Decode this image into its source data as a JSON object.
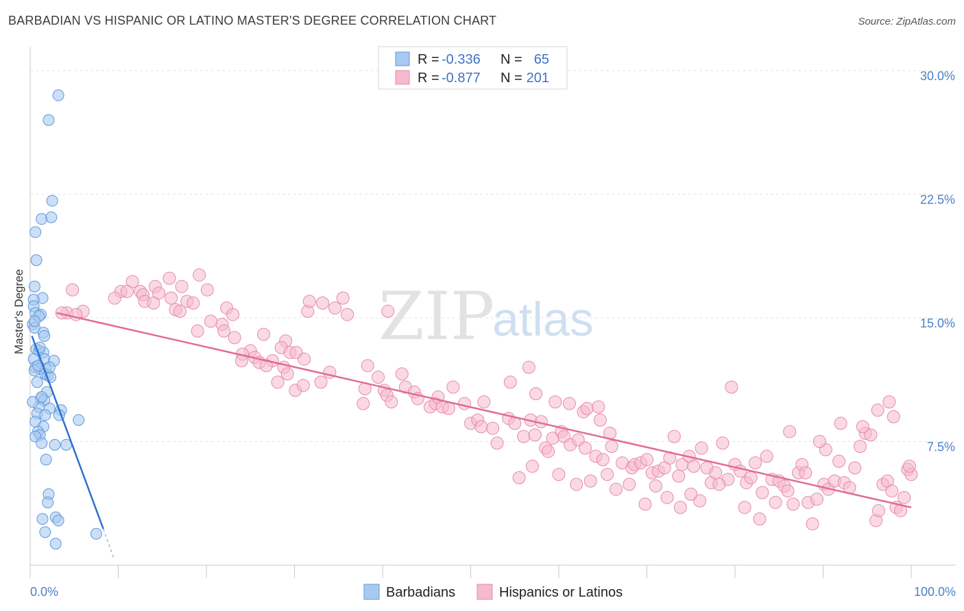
{
  "header": {
    "title": "BARBADIAN VS HISPANIC OR LATINO MASTER'S DEGREE CORRELATION CHART",
    "source": "Source: ZipAtlas.com"
  },
  "watermark": {
    "zip": "ZIP",
    "atlas": "atlas"
  },
  "legend_top": {
    "rows": [
      {
        "r_label": "R =",
        "r_value": "-0.336",
        "n_label": "N =",
        "n_value": "65"
      },
      {
        "r_label": "R =",
        "r_value": "-0.877",
        "n_label": "N =",
        "n_value": "201"
      }
    ]
  },
  "chart_data": {
    "type": "scatter",
    "title": "BARBADIAN VS HISPANIC OR LATINO MASTER'S DEGREE CORRELATION CHART",
    "xlabel": "",
    "ylabel": "Master's Degree",
    "xlim": [
      0,
      100
    ],
    "ylim": [
      0,
      31
    ],
    "x_ticks": [
      "0.0%",
      "100.0%"
    ],
    "y_ticks": [
      {
        "value": 7.5,
        "label": "7.5%"
      },
      {
        "value": 15,
        "label": "15.0%"
      },
      {
        "value": 22.5,
        "label": "22.5%"
      },
      {
        "value": 30,
        "label": "30.0%"
      }
    ],
    "grid": true,
    "legend_position": "bottom",
    "colors": {
      "barbadian_fill": "#a9c9f2",
      "barbadian_stroke": "#5f97d9",
      "barbadian_line": "#2f6fd0",
      "hispanic_fill": "#f6b9cd",
      "hispanic_stroke": "#e68aa8",
      "hispanic_line": "#e06c95"
    },
    "series": [
      {
        "name": "Barbadians",
        "r": -0.336,
        "n": 65,
        "trend": {
          "x0": 0.2,
          "y0": 13.9,
          "x1": 8.3,
          "y1": 2.2,
          "dash_to_x": 9.5,
          "dash_to_y": 0.4
        },
        "points": [
          [
            3.2,
            28.5
          ],
          [
            2.1,
            27.0
          ],
          [
            2.5,
            22.1
          ],
          [
            1.3,
            21.0
          ],
          [
            2.4,
            21.1
          ],
          [
            0.6,
            20.2
          ],
          [
            0.7,
            18.5
          ],
          [
            0.5,
            16.9
          ],
          [
            1.4,
            16.2
          ],
          [
            0.4,
            16.1
          ],
          [
            0.4,
            15.7
          ],
          [
            0.6,
            15.3
          ],
          [
            1.2,
            15.2
          ],
          [
            0.3,
            14.6
          ],
          [
            0.5,
            14.4
          ],
          [
            1.5,
            14.1
          ],
          [
            1.6,
            13.9
          ],
          [
            0.7,
            13.1
          ],
          [
            1.0,
            13.0
          ],
          [
            1.5,
            12.9
          ],
          [
            0.4,
            12.5
          ],
          [
            1.6,
            12.5
          ],
          [
            2.7,
            12.4
          ],
          [
            0.6,
            12.0
          ],
          [
            1.1,
            11.9
          ],
          [
            1.8,
            11.9
          ],
          [
            0.5,
            11.8
          ],
          [
            1.7,
            11.6
          ],
          [
            2.0,
            11.5
          ],
          [
            2.3,
            11.4
          ],
          [
            1.9,
            10.5
          ],
          [
            1.2,
            10.1
          ],
          [
            1.6,
            10.0
          ],
          [
            1.0,
            9.6
          ],
          [
            2.2,
            9.5
          ],
          [
            3.5,
            9.4
          ],
          [
            0.8,
            9.2
          ],
          [
            1.7,
            9.1
          ],
          [
            3.3,
            9.1
          ],
          [
            5.5,
            8.8
          ],
          [
            0.6,
            8.7
          ],
          [
            1.5,
            8.4
          ],
          [
            0.9,
            8.1
          ],
          [
            1.1,
            7.9
          ],
          [
            0.6,
            7.8
          ],
          [
            1.3,
            7.4
          ],
          [
            2.8,
            7.3
          ],
          [
            4.1,
            7.3
          ],
          [
            1.8,
            6.4
          ],
          [
            2.1,
            4.3
          ],
          [
            2.0,
            3.8
          ],
          [
            1.4,
            2.8
          ],
          [
            2.9,
            2.9
          ],
          [
            3.2,
            2.7
          ],
          [
            1.7,
            2.0
          ],
          [
            7.5,
            1.9
          ],
          [
            2.9,
            1.3
          ],
          [
            1.0,
            15.1
          ],
          [
            0.9,
            12.1
          ],
          [
            1.3,
            10.2
          ],
          [
            0.5,
            14.8
          ],
          [
            2.2,
            12.0
          ],
          [
            1.1,
            13.2
          ],
          [
            0.8,
            11.1
          ],
          [
            0.3,
            9.9
          ]
        ]
      },
      {
        "name": "Hispanics or Latinos",
        "r": -0.877,
        "n": 201,
        "trend": {
          "x0": 3.0,
          "y0": 15.3,
          "x1": 100.0,
          "y1": 3.5
        },
        "points": [
          [
            11.6,
            17.2
          ],
          [
            12.5,
            16.6
          ],
          [
            14.2,
            16.9
          ],
          [
            15.8,
            17.4
          ],
          [
            17.2,
            16.9
          ],
          [
            19.2,
            17.6
          ],
          [
            10.3,
            16.6
          ],
          [
            11.0,
            16.6
          ],
          [
            12.8,
            16.4
          ],
          [
            14.6,
            16.5
          ],
          [
            16.0,
            16.2
          ],
          [
            17.8,
            16.0
          ],
          [
            9.6,
            16.2
          ],
          [
            13.0,
            16.0
          ],
          [
            14.0,
            15.9
          ],
          [
            16.5,
            15.5
          ],
          [
            18.5,
            15.9
          ],
          [
            20.1,
            16.7
          ],
          [
            4.8,
            16.7
          ],
          [
            6.0,
            15.4
          ],
          [
            4.2,
            15.3
          ],
          [
            3.6,
            15.3
          ],
          [
            5.2,
            15.2
          ],
          [
            17.0,
            15.4
          ],
          [
            19.0,
            14.2
          ],
          [
            22.3,
            15.6
          ],
          [
            23.0,
            15.2
          ],
          [
            20.5,
            14.8
          ],
          [
            21.8,
            14.6
          ],
          [
            22.0,
            14.2
          ],
          [
            23.2,
            13.8
          ],
          [
            26.5,
            14.0
          ],
          [
            29.0,
            13.6
          ],
          [
            28.5,
            13.2
          ],
          [
            25.0,
            13.0
          ],
          [
            24.1,
            12.8
          ],
          [
            25.5,
            12.6
          ],
          [
            24.0,
            12.4
          ],
          [
            26.0,
            12.3
          ],
          [
            27.5,
            12.4
          ],
          [
            26.8,
            12.1
          ],
          [
            29.5,
            12.9
          ],
          [
            30.2,
            12.9
          ],
          [
            31.1,
            12.5
          ],
          [
            28.8,
            12.0
          ],
          [
            29.2,
            11.6
          ],
          [
            28.1,
            11.1
          ],
          [
            30.1,
            10.6
          ],
          [
            31.0,
            10.9
          ],
          [
            34.0,
            11.7
          ],
          [
            33.0,
            11.1
          ],
          [
            33.2,
            15.9
          ],
          [
            34.6,
            15.6
          ],
          [
            31.5,
            15.4
          ],
          [
            36.0,
            15.2
          ],
          [
            31.7,
            16.0
          ],
          [
            39.5,
            11.4
          ],
          [
            38.0,
            10.7
          ],
          [
            40.2,
            10.6
          ],
          [
            37.8,
            9.8
          ],
          [
            40.5,
            10.3
          ],
          [
            41.0,
            9.9
          ],
          [
            42.2,
            11.6
          ],
          [
            42.6,
            10.8
          ],
          [
            43.6,
            10.5
          ],
          [
            44.0,
            10.1
          ],
          [
            45.4,
            9.6
          ],
          [
            46.0,
            9.8
          ],
          [
            46.3,
            10.2
          ],
          [
            46.8,
            9.6
          ],
          [
            47.5,
            9.5
          ],
          [
            48.0,
            10.8
          ],
          [
            49.3,
            9.8
          ],
          [
            50.0,
            8.6
          ],
          [
            50.8,
            8.8
          ],
          [
            51.2,
            8.4
          ],
          [
            51.5,
            9.9
          ],
          [
            52.5,
            8.3
          ],
          [
            53.0,
            7.4
          ],
          [
            54.3,
            8.9
          ],
          [
            55.0,
            8.6
          ],
          [
            56.0,
            7.8
          ],
          [
            56.8,
            8.8
          ],
          [
            57.3,
            7.9
          ],
          [
            58.0,
            8.7
          ],
          [
            58.5,
            7.1
          ],
          [
            59.3,
            7.7
          ],
          [
            60.3,
            8.1
          ],
          [
            60.6,
            7.8
          ],
          [
            61.3,
            7.3
          ],
          [
            62.2,
            7.6
          ],
          [
            62.8,
            9.3
          ],
          [
            63.0,
            7.1
          ],
          [
            64.2,
            6.6
          ],
          [
            65.0,
            6.4
          ],
          [
            56.6,
            12.0
          ],
          [
            54.5,
            11.1
          ],
          [
            57.4,
            10.4
          ],
          [
            59.6,
            9.9
          ],
          [
            61.2,
            9.8
          ],
          [
            63.2,
            9.5
          ],
          [
            64.5,
            9.6
          ],
          [
            64.7,
            8.8
          ],
          [
            65.8,
            8.0
          ],
          [
            66.0,
            7.2
          ],
          [
            67.2,
            6.2
          ],
          [
            68.3,
            5.9
          ],
          [
            68.6,
            6.1
          ],
          [
            69.3,
            6.2
          ],
          [
            70.0,
            6.4
          ],
          [
            70.6,
            5.6
          ],
          [
            71.3,
            5.7
          ],
          [
            72.0,
            5.9
          ],
          [
            72.6,
            6.5
          ],
          [
            73.1,
            7.8
          ],
          [
            73.6,
            5.4
          ],
          [
            74.0,
            6.1
          ],
          [
            74.8,
            6.6
          ],
          [
            75.3,
            6.0
          ],
          [
            76.2,
            7.1
          ],
          [
            76.8,
            5.9
          ],
          [
            77.3,
            5.0
          ],
          [
            77.8,
            5.6
          ],
          [
            78.6,
            7.4
          ],
          [
            79.2,
            5.2
          ],
          [
            80.0,
            6.1
          ],
          [
            80.6,
            5.7
          ],
          [
            81.3,
            5.0
          ],
          [
            81.8,
            5.3
          ],
          [
            82.3,
            6.2
          ],
          [
            83.1,
            4.4
          ],
          [
            83.6,
            6.6
          ],
          [
            84.2,
            5.2
          ],
          [
            85.0,
            5.1
          ],
          [
            85.6,
            4.8
          ],
          [
            86.0,
            4.5
          ],
          [
            86.6,
            3.7
          ],
          [
            87.2,
            5.6
          ],
          [
            87.6,
            6.1
          ],
          [
            88.3,
            3.8
          ],
          [
            88.8,
            2.5
          ],
          [
            89.3,
            4.0
          ],
          [
            90.1,
            4.9
          ],
          [
            90.6,
            4.6
          ],
          [
            91.3,
            5.1
          ],
          [
            91.8,
            6.3
          ],
          [
            92.4,
            5.0
          ],
          [
            93.0,
            4.7
          ],
          [
            93.6,
            5.9
          ],
          [
            94.2,
            7.2
          ],
          [
            94.8,
            8.0
          ],
          [
            95.4,
            7.9
          ],
          [
            96.0,
            2.7
          ],
          [
            96.3,
            3.3
          ],
          [
            96.8,
            4.9
          ],
          [
            97.3,
            5.1
          ],
          [
            97.8,
            4.5
          ],
          [
            98.3,
            3.5
          ],
          [
            98.8,
            3.3
          ],
          [
            99.2,
            4.1
          ],
          [
            99.6,
            5.8
          ],
          [
            100.0,
            5.5
          ],
          [
            99.8,
            6.0
          ],
          [
            98.0,
            9.0
          ],
          [
            97.5,
            9.9
          ],
          [
            96.2,
            9.4
          ],
          [
            94.5,
            8.4
          ],
          [
            92.0,
            8.6
          ],
          [
            90.3,
            7.0
          ],
          [
            89.6,
            7.5
          ],
          [
            88.0,
            5.6
          ],
          [
            86.2,
            8.1
          ],
          [
            84.6,
            3.8
          ],
          [
            82.8,
            2.8
          ],
          [
            81.1,
            3.5
          ],
          [
            79.6,
            10.8
          ],
          [
            78.2,
            4.9
          ],
          [
            76.0,
            3.9
          ],
          [
            75.0,
            4.3
          ],
          [
            73.8,
            3.5
          ],
          [
            72.3,
            4.1
          ],
          [
            71.0,
            4.8
          ],
          [
            69.8,
            3.7
          ],
          [
            68.0,
            4.9
          ],
          [
            66.5,
            4.6
          ],
          [
            65.5,
            5.5
          ],
          [
            63.6,
            5.1
          ],
          [
            62.0,
            4.9
          ],
          [
            60.0,
            5.5
          ],
          [
            58.8,
            6.9
          ],
          [
            57.0,
            6.0
          ],
          [
            55.5,
            5.3
          ],
          [
            40.6,
            15.4
          ],
          [
            35.5,
            16.2
          ],
          [
            38.3,
            12.1
          ]
        ]
      }
    ]
  },
  "legend_bottom": {
    "items": [
      {
        "label": "Barbadians"
      },
      {
        "label": "Hispanics or Latinos"
      }
    ]
  }
}
